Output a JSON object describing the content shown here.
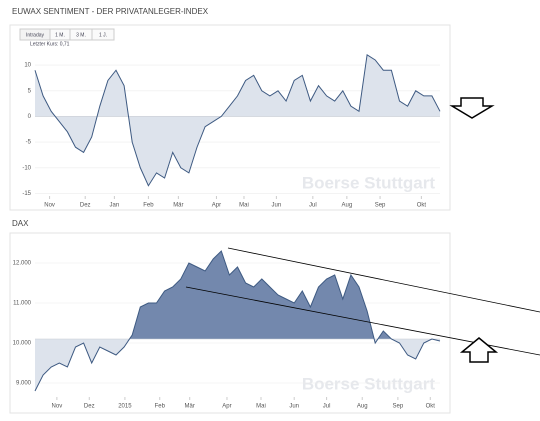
{
  "chart_data": [
    {
      "type": "area",
      "title": "EUWAX SENTIMENT - DER PRIVATANLEGER-INDEX",
      "tabs": [
        "Intraday",
        "1 M.",
        "3 M.",
        "1 J."
      ],
      "last_price": "Letzter Kurs: 0,71",
      "watermark": "Boerse Stuttgart",
      "color": "#3e5a82",
      "fill": "#dde3ec",
      "values": [
        9,
        4,
        1,
        -1,
        -3,
        -6,
        -7,
        -4,
        2,
        7,
        9,
        6,
        -5,
        -10,
        -13.5,
        -11,
        -12,
        -7,
        -10,
        -11,
        -6,
        -2,
        -1,
        0,
        2,
        4,
        7,
        8,
        5,
        4,
        5,
        3,
        7,
        8,
        3,
        6,
        4,
        3,
        5,
        2,
        1,
        12,
        11,
        9,
        9,
        3,
        2,
        5,
        4,
        4,
        1
      ],
      "xlim": [
        0,
        50
      ],
      "xticks": [
        {
          "value": 1.8,
          "label": "Nov"
        },
        {
          "value": 6.2,
          "label": "Dez"
        },
        {
          "value": 9.8,
          "label": "Jan"
        },
        {
          "value": 14,
          "label": "Feb"
        },
        {
          "value": 17.7,
          "label": "Mär"
        },
        {
          "value": 22.4,
          "label": "Apr"
        },
        {
          "value": 25.8,
          "label": "Mai"
        },
        {
          "value": 29.8,
          "label": "Jun"
        },
        {
          "value": 34.3,
          "label": "Jul"
        },
        {
          "value": 38.5,
          "label": "Aug"
        },
        {
          "value": 42.6,
          "label": "Sep"
        },
        {
          "value": 47.7,
          "label": "Okt"
        }
      ],
      "ylim": [
        -15.5,
        14.5
      ],
      "yticks": [
        10,
        5,
        0,
        -5,
        -10,
        -15
      ],
      "grid": true,
      "baseline": 0
    },
    {
      "type": "area",
      "title": "DAX",
      "watermark": "Boerse Stuttgart",
      "color": "#3e5a82",
      "fill": "#dde3ec",
      "fill_above": "#7388ad",
      "values": [
        8800,
        9200,
        9400,
        9500,
        9400,
        9900,
        10000,
        9500,
        9900,
        9800,
        9700,
        9900,
        10200,
        10900,
        11000,
        11000,
        11300,
        11400,
        11600,
        12000,
        11900,
        11800,
        12100,
        12300,
        11700,
        11900,
        11500,
        11400,
        11600,
        11400,
        11200,
        11100,
        11000,
        11300,
        10900,
        11400,
        11600,
        11700,
        11100,
        11700,
        11400,
        10800,
        10000,
        10300,
        10100,
        10000,
        9700,
        9600,
        10000,
        10100,
        10050
      ],
      "xlim": [
        0,
        50
      ],
      "xticks": [
        {
          "value": 2.7,
          "label": "Nov"
        },
        {
          "value": 6.7,
          "label": "Dez"
        },
        {
          "value": 11.1,
          "label": "2015"
        },
        {
          "value": 15.4,
          "label": "Feb"
        },
        {
          "value": 19.1,
          "label": "Mär"
        },
        {
          "value": 23.7,
          "label": "Apr"
        },
        {
          "value": 27.9,
          "label": "Mai"
        },
        {
          "value": 32,
          "label": "Jun"
        },
        {
          "value": 36,
          "label": "Jul"
        },
        {
          "value": 40.4,
          "label": "Aug"
        },
        {
          "value": 44.8,
          "label": "Sep"
        },
        {
          "value": 48.8,
          "label": "Okt"
        }
      ],
      "ylim": [
        8650,
        12575
      ],
      "yticks": [
        {
          "value": 12000,
          "label": "12.000"
        },
        {
          "value": 11000,
          "label": "11.000"
        },
        {
          "value": 10000,
          "label": "10.000"
        },
        {
          "value": 9000,
          "label": "9.000"
        }
      ],
      "grid": true,
      "baseline": 10100
    }
  ]
}
